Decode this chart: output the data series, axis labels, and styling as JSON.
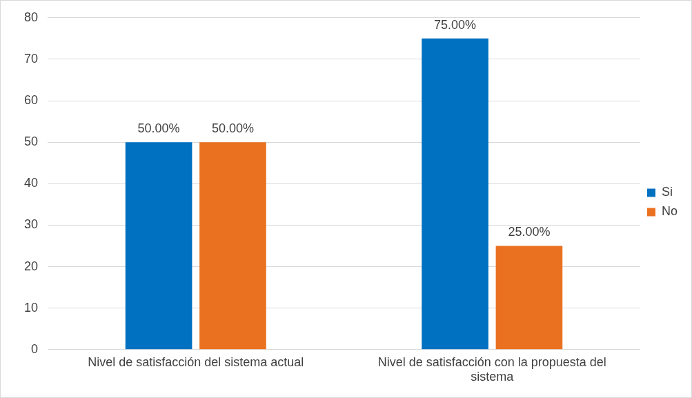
{
  "chart_data": {
    "type": "bar",
    "categories": [
      "Nivel de satisfacción del sistema actual",
      "Nivel de satisfacción con la propuesta del sistema"
    ],
    "series": [
      {
        "name": "Si",
        "color": "#0070c0",
        "values": [
          50,
          75
        ],
        "value_labels": [
          "50.00%",
          "75.00%"
        ]
      },
      {
        "name": "No",
        "color": "#e97120",
        "values": [
          50,
          25
        ],
        "value_labels": [
          "50.00%",
          "25.00%"
        ]
      }
    ],
    "ylim": [
      0,
      80
    ],
    "yticks": [
      0,
      10,
      20,
      30,
      40,
      50,
      60,
      70,
      80
    ],
    "grid": "y",
    "legend": "right"
  }
}
